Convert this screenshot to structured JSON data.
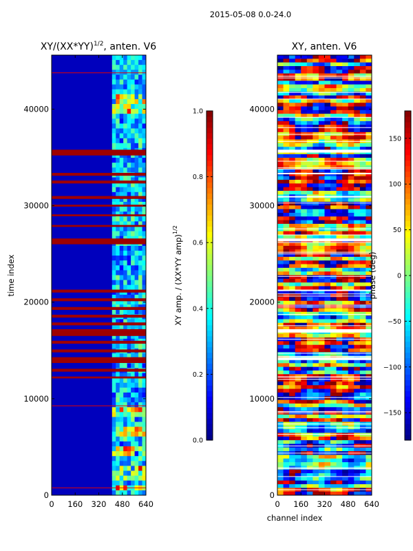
{
  "figure_title": "2015-05-08 0.0-24.0",
  "chart_data": [
    {
      "type": "heatmap",
      "panel": "left",
      "title": "XY/(XX*YY)^1/2, anten. V6",
      "title_main": "XY/(XX*YY)",
      "title_exp": "1/2",
      "title_suffix": ", anten. V6",
      "xlabel": "",
      "ylabel": "time index",
      "xlim": [
        0,
        640
      ],
      "ylim": [
        0,
        45600
      ],
      "xticks": [
        0,
        160,
        320,
        480,
        640
      ],
      "yticks": [
        0,
        10000,
        20000,
        30000,
        40000
      ],
      "colorbar": {
        "label": "XY amp. / (XX*YY amp)^1/2",
        "label_main": "XY amp. / (XX*YY amp)",
        "label_exp": "1/2",
        "range": [
          0.0,
          1.0
        ],
        "ticks": [
          0.0,
          0.2,
          0.4,
          0.6,
          0.8,
          1.0
        ],
        "tick_labels": [
          "0.0",
          "0.2",
          "0.4",
          "0.6",
          "0.8",
          "1.0"
        ],
        "colormap": "jet"
      },
      "active_channel_band": [
        410,
        640
      ],
      "flagged_time_bands": [
        [
          35200,
          35800
        ],
        [
          33100,
          33400
        ],
        [
          32300,
          32600
        ],
        [
          30700,
          31000
        ],
        [
          29900,
          30100
        ],
        [
          28900,
          29100
        ],
        [
          27800,
          28000
        ],
        [
          26000,
          26600
        ],
        [
          21000,
          21300
        ],
        [
          20100,
          20400
        ],
        [
          19200,
          19500
        ],
        [
          18400,
          18700
        ],
        [
          17600,
          17900
        ],
        [
          16500,
          17200
        ],
        [
          15700,
          16000
        ],
        [
          14800,
          15100
        ],
        [
          13700,
          14300
        ],
        [
          12800,
          13100
        ],
        [
          12100,
          12300
        ]
      ],
      "bright_time_bands": [
        [
          300,
          900
        ],
        [
          1500,
          3200
        ],
        [
          4200,
          5200
        ],
        [
          6100,
          7300
        ],
        [
          8000,
          9300
        ],
        [
          39500,
          41300
        ]
      ]
    },
    {
      "type": "heatmap",
      "panel": "right",
      "title": "XY, anten. V6",
      "xlabel": "channel index",
      "ylabel": "",
      "xlim": [
        0,
        640
      ],
      "ylim": [
        0,
        45600
      ],
      "xticks": [
        0,
        160,
        320,
        480,
        640
      ],
      "yticks": [
        0,
        10000,
        20000,
        30000,
        40000
      ],
      "colorbar": {
        "label": "phase (deg)",
        "range": [
          -180,
          180
        ],
        "ticks": [
          -150,
          -100,
          -50,
          0,
          50,
          100,
          150
        ],
        "tick_labels": [
          "−150",
          "−100",
          "−50",
          "0",
          "50",
          "100",
          "150"
        ],
        "colormap": "jet"
      },
      "flagged_time_bands": [
        [
          35200,
          35800
        ],
        [
          33100,
          33400
        ],
        [
          30700,
          31000
        ],
        [
          26000,
          26600
        ],
        [
          21000,
          21300
        ],
        [
          16500,
          17200
        ],
        [
          13700,
          14300
        ],
        [
          12100,
          12300
        ]
      ]
    }
  ]
}
